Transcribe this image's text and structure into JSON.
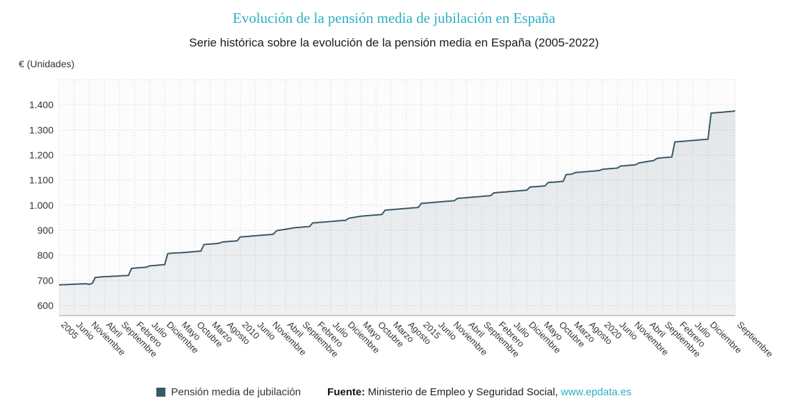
{
  "title": "Evolución de la pensión media de jubilación en España",
  "subtitle": "Serie histórica sobre la evolución de la pensión media en España (2005-2022)",
  "y_axis_unit": "€ (Unidades)",
  "legend": {
    "series_label": "Pensión media de jubilación"
  },
  "source": {
    "label": "Fuente:",
    "text": " Ministerio de Empleo y Seguridad Social, ",
    "link": "www.epdata.es"
  },
  "colors": {
    "title": "#2cafc4",
    "line": "#3a5766",
    "grid": "#c9c9c9",
    "axis": "#999999",
    "tick_text": "#333333",
    "link": "#2cafc4"
  },
  "chart_data": {
    "type": "area",
    "title": "Evolución de la pensión media de jubilación en España",
    "x_start": "2005-01",
    "frequency": "monthly",
    "x_tick_step": 5,
    "x_tick_labels": [
      "2005",
      "Junio",
      "Noviembre",
      "Abril",
      "Septiembre",
      "Febrero",
      "Julio",
      "Diciembre",
      "Mayo",
      "Octubre",
      "Marzo",
      "Agosto",
      "2010",
      "Junio",
      "Noviembre",
      "Abril",
      "Septiembre",
      "Febrero",
      "Julio",
      "Diciembre",
      "Mayo",
      "Octubre",
      "Marzo",
      "Agosto",
      "2015",
      "Junio",
      "Noviembre",
      "Abril",
      "Septiembre",
      "Febrero",
      "Julio",
      "Diciembre",
      "Mayo",
      "Octubre",
      "Marzo",
      "Agosto",
      "2020",
      "Junio",
      "Noviembre",
      "Abril",
      "Septiembre",
      "Febrero",
      "Julio",
      "Diciembre",
      "Septiembre"
    ],
    "y_tick_labels": [
      "600",
      "700",
      "800",
      "900",
      "1.000",
      "1.100",
      "1.200",
      "1.300",
      "1.400"
    ],
    "y_gridlines": [
      600,
      700,
      800,
      900,
      1000,
      1100,
      1200,
      1300,
      1400
    ],
    "ylim": [
      560,
      1500
    ],
    "series": [
      {
        "name": "Pensión media de jubilación",
        "values": [
          682,
          683,
          683,
          684,
          684,
          685,
          685,
          686,
          686,
          687,
          684,
          688,
          712,
          713,
          714,
          715,
          715,
          716,
          717,
          717,
          718,
          719,
          719,
          720,
          748,
          749,
          750,
          751,
          752,
          753,
          758,
          759,
          760,
          761,
          762,
          763,
          807,
          808,
          809,
          810,
          810,
          811,
          812,
          813,
          814,
          815,
          816,
          817,
          843,
          844,
          845,
          846,
          847,
          848,
          853,
          854,
          855,
          856,
          857,
          858,
          873,
          874,
          875,
          876,
          877,
          878,
          879,
          880,
          881,
          882,
          883,
          884,
          898,
          900,
          902,
          904,
          906,
          908,
          910,
          911,
          912,
          913,
          914,
          915,
          929,
          930,
          931,
          932,
          933,
          934,
          935,
          936,
          937,
          938,
          939,
          940,
          948,
          950,
          952,
          954,
          956,
          957,
          958,
          959,
          960,
          961,
          962,
          963,
          980,
          981,
          982,
          983,
          984,
          985,
          986,
          987,
          988,
          989,
          990,
          991,
          1007,
          1008,
          1009,
          1010,
          1011,
          1012,
          1013,
          1014,
          1015,
          1016,
          1017,
          1018,
          1027,
          1028,
          1029,
          1030,
          1031,
          1032,
          1033,
          1034,
          1035,
          1036,
          1037,
          1038,
          1049,
          1050,
          1051,
          1052,
          1053,
          1054,
          1055,
          1056,
          1057,
          1058,
          1059,
          1060,
          1072,
          1073,
          1074,
          1075,
          1076,
          1077,
          1090,
          1091,
          1092,
          1093,
          1094,
          1095,
          1122,
          1123,
          1124,
          1130,
          1131,
          1132,
          1133,
          1134,
          1135,
          1136,
          1137,
          1138,
          1143,
          1144,
          1145,
          1146,
          1147,
          1148,
          1156,
          1157,
          1158,
          1159,
          1160,
          1161,
          1168,
          1170,
          1172,
          1174,
          1176,
          1178,
          1186,
          1188,
          1189,
          1190,
          1191,
          1192,
          1252,
          1253,
          1254,
          1255,
          1256,
          1257,
          1258,
          1259,
          1260,
          1261,
          1262,
          1263,
          1367,
          1368,
          1369,
          1370,
          1371,
          1372,
          1373,
          1374,
          1376
        ]
      }
    ]
  }
}
